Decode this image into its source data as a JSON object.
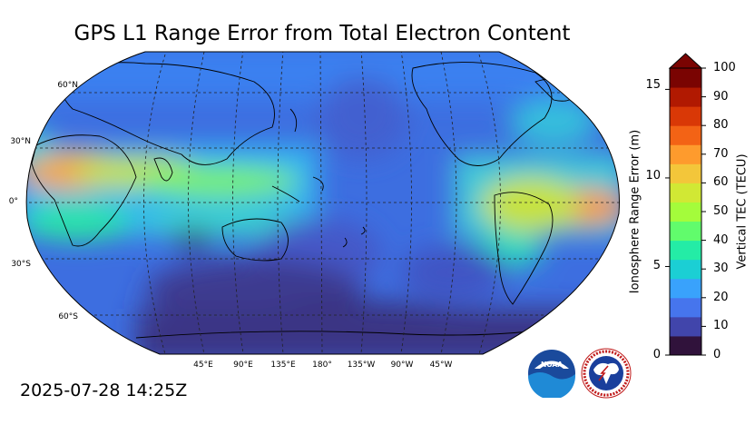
{
  "title": "GPS L1 Range Error from Total Electron Content",
  "timestamp": "2025-07-28 14:25Z",
  "map": {
    "projection": "Robinson, Pacific-centered",
    "lat_labels": [
      "60°N",
      "30°N",
      "0°",
      "30°S",
      "60°S"
    ],
    "lon_labels": [
      "45°E",
      "90°E",
      "135°E",
      "180°",
      "135°W",
      "90°W",
      "45°W"
    ]
  },
  "colorbar": {
    "left_title": "Ionosphere Range Error (m)",
    "right_title": "Vertical TEC (TECU)",
    "left_ticks": [
      "0",
      "5",
      "10",
      "15"
    ],
    "right_ticks": [
      "0",
      "10",
      "20",
      "30",
      "40",
      "50",
      "60",
      "70",
      "80",
      "90",
      "100"
    ],
    "range_tecu": [
      0,
      100
    ],
    "range_m": [
      0,
      16.2
    ],
    "extend": "max",
    "colors": [
      "#30123b",
      "#4145ab",
      "#4675ed",
      "#39a2fc",
      "#1bcfd4",
      "#24eca6",
      "#61fc6c",
      "#a4fc3b",
      "#d1e834",
      "#f3c63a",
      "#fe9b2d",
      "#f36315",
      "#d93806",
      "#b11901",
      "#7a0402"
    ]
  },
  "logos": {
    "noaa": "NOAA",
    "nws": "NATIONAL WEATHER SERVICE"
  }
}
